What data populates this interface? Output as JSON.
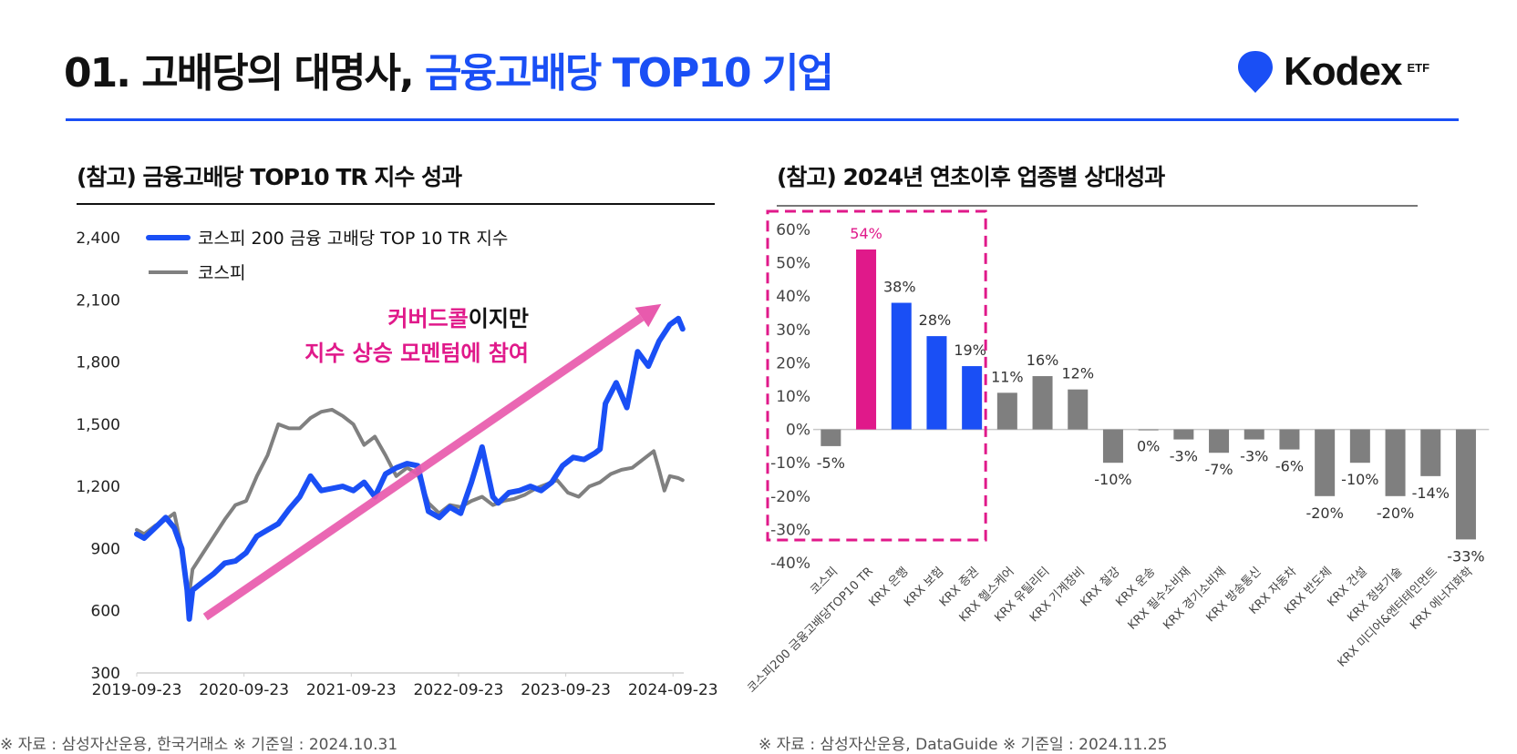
{
  "header": {
    "title_prefix": "01. 고배당의 대명사, ",
    "title_accent": "금융고배당 TOP10 기업",
    "logo_icon": "location-pin-icon",
    "logo_brand": "Kodex",
    "logo_suffix": "ETF",
    "accent_color": "#1a4ff5"
  },
  "left_panel": {
    "title": "(참고) 금융고배당 TOP10 TR 지수 성과",
    "footnote": "※ 자료 : 삼성자산운용, 한국거래소   ※ 기준일 : 2024.10.31",
    "annotation": {
      "line1_pink": "커버드콜",
      "line1_dark": "이지만",
      "line2": "지수 상승 모멘텀에 참여"
    }
  },
  "right_panel": {
    "title": "(참고) 2024년 연초이후 업종별 상대성과",
    "footnote": "※ 자료 : 삼성자산운용, DataGuide   ※ 기준일 : 2024.11.25"
  },
  "chart_data": [
    {
      "type": "line",
      "title": "(참고) 금융고배당 TOP10 TR 지수 성과",
      "xlabel": "",
      "ylabel": "",
      "ylim": [
        300,
        2400
      ],
      "yticks": [
        300,
        600,
        900,
        1200,
        1500,
        1800,
        2100,
        2400
      ],
      "ytick_labels": [
        "300",
        "600",
        "900",
        "1,200",
        "1,500",
        "1,800",
        "2,100",
        "2,400"
      ],
      "xlim": [
        2019.73,
        2024.83
      ],
      "xticks": [
        2019.73,
        2020.73,
        2021.73,
        2022.73,
        2023.73,
        2024.73
      ],
      "xtick_labels": [
        "2019-09-23",
        "2020-09-23",
        "2021-09-23",
        "2022-09-23",
        "2023-09-23",
        "2024-09-23"
      ],
      "legend_position": "top-left",
      "grid": false,
      "series": [
        {
          "name": "코스피 200 금융 고배당 TOP 10 TR 지수",
          "color": "#1a4ff5",
          "x": [
            2019.73,
            2019.8,
            2019.9,
            2020.0,
            2020.08,
            2020.15,
            2020.2,
            2020.22,
            2020.25,
            2020.35,
            2020.45,
            2020.55,
            2020.65,
            2020.75,
            2020.85,
            2020.95,
            2021.05,
            2021.15,
            2021.25,
            2021.35,
            2021.45,
            2021.55,
            2021.65,
            2021.75,
            2021.85,
            2021.95,
            2022.05,
            2022.15,
            2022.25,
            2022.35,
            2022.45,
            2022.55,
            2022.65,
            2022.75,
            2022.85,
            2022.95,
            2023.05,
            2023.1,
            2023.2,
            2023.3,
            2023.4,
            2023.5,
            2023.6,
            2023.7,
            2023.8,
            2023.9,
            2024.0,
            2024.05,
            2024.1,
            2024.2,
            2024.3,
            2024.4,
            2024.5,
            2024.6,
            2024.7,
            2024.78,
            2024.82
          ],
          "y": [
            970,
            950,
            1000,
            1050,
            1000,
            900,
            700,
            560,
            700,
            740,
            780,
            830,
            840,
            880,
            960,
            990,
            1020,
            1090,
            1150,
            1250,
            1180,
            1190,
            1200,
            1180,
            1220,
            1150,
            1260,
            1290,
            1310,
            1300,
            1080,
            1050,
            1100,
            1070,
            1220,
            1390,
            1150,
            1120,
            1170,
            1180,
            1200,
            1180,
            1220,
            1300,
            1340,
            1330,
            1360,
            1380,
            1600,
            1700,
            1580,
            1850,
            1780,
            1900,
            1980,
            2010,
            1960
          ]
        },
        {
          "name": "코스피",
          "color": "#808080",
          "x": [
            2019.73,
            2019.8,
            2019.9,
            2020.0,
            2020.08,
            2020.15,
            2020.2,
            2020.22,
            2020.25,
            2020.35,
            2020.45,
            2020.55,
            2020.65,
            2020.75,
            2020.85,
            2020.95,
            2021.05,
            2021.15,
            2021.25,
            2021.35,
            2021.45,
            2021.55,
            2021.65,
            2021.75,
            2021.85,
            2021.95,
            2022.05,
            2022.15,
            2022.25,
            2022.35,
            2022.45,
            2022.55,
            2022.65,
            2022.75,
            2022.85,
            2022.95,
            2023.05,
            2023.15,
            2023.25,
            2023.35,
            2023.45,
            2023.55,
            2023.65,
            2023.75,
            2023.85,
            2023.95,
            2024.05,
            2024.15,
            2024.25,
            2024.35,
            2024.45,
            2024.55,
            2024.6,
            2024.65,
            2024.7,
            2024.78,
            2024.82
          ],
          "y": [
            990,
            970,
            1010,
            1040,
            1070,
            900,
            720,
            680,
            800,
            880,
            960,
            1040,
            1110,
            1130,
            1250,
            1350,
            1500,
            1480,
            1480,
            1530,
            1560,
            1570,
            1540,
            1500,
            1400,
            1440,
            1350,
            1250,
            1290,
            1260,
            1120,
            1070,
            1110,
            1100,
            1130,
            1150,
            1110,
            1130,
            1140,
            1160,
            1190,
            1210,
            1230,
            1170,
            1150,
            1200,
            1220,
            1260,
            1280,
            1290,
            1330,
            1370,
            1280,
            1180,
            1250,
            1240,
            1230
          ]
        }
      ],
      "annotation": "커버드콜이지만 지수 상승 모멘텀에 참여",
      "trend_arrow": {
        "from": [
          2020.37,
          570
        ],
        "to": [
          2024.62,
          2080
        ]
      }
    },
    {
      "type": "bar",
      "title": "(참고) 2024년 연초이후 업종별 상대성과",
      "xlabel": "",
      "ylabel": "",
      "ylim": [
        -40,
        60
      ],
      "yticks": [
        -40,
        -30,
        -20,
        -10,
        0,
        10,
        20,
        30,
        40,
        50,
        60
      ],
      "ytick_labels": [
        "-40%",
        "-30%",
        "-20%",
        "-10%",
        "0%",
        "10%",
        "20%",
        "30%",
        "40%",
        "50%",
        "60%"
      ],
      "grid": false,
      "categories": [
        "코스피",
        "코스피200 금융고배당TOP10 TR",
        "KRX 은행",
        "KRX 보험",
        "KRX 증권",
        "KRX 헬스케어",
        "KRX 유틸리티",
        "KRX 기계장비",
        "KRX 철강",
        "KRX 운송",
        "KRX 필수소비재",
        "KRX 경기소비재",
        "KRX 방송통신",
        "KRX 자동차",
        "KRX 반도체",
        "KRX 건설",
        "KRX 정보기술",
        "KRX 미디어&엔터테인먼트",
        "KRX 에너지화학"
      ],
      "values": [
        -5,
        54,
        38,
        28,
        19,
        11,
        16,
        12,
        -10,
        0,
        -3,
        -7,
        -3,
        -6,
        -20,
        -10,
        -20,
        -14,
        -33
      ],
      "value_labels": [
        "-5%",
        "54%",
        "38%",
        "28%",
        "19%",
        "11%",
        "16%",
        "12%",
        "-10%",
        "0%",
        "-3%",
        "-7%",
        "-3%",
        "-6%",
        "-20%",
        "-10%",
        "-20%",
        "-14%",
        "-33%"
      ],
      "bar_colors": [
        "#7f7f7f",
        "#e0198a",
        "#1a4ff5",
        "#1a4ff5",
        "#1a4ff5",
        "#7f7f7f",
        "#7f7f7f",
        "#7f7f7f",
        "#7f7f7f",
        "#7f7f7f",
        "#7f7f7f",
        "#7f7f7f",
        "#7f7f7f",
        "#7f7f7f",
        "#7f7f7f",
        "#7f7f7f",
        "#7f7f7f",
        "#7f7f7f",
        "#7f7f7f"
      ],
      "highlight_box": {
        "from_category": 0,
        "to_category": 4,
        "color": "#e0198a",
        "style": "dashed"
      }
    }
  ]
}
